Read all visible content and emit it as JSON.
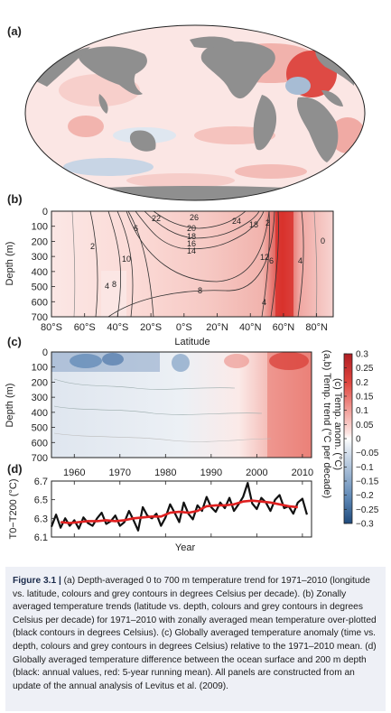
{
  "panels": {
    "a": {
      "label": "(a)"
    },
    "b": {
      "label": "(b)",
      "xlabel": "Latitude",
      "ylabel": "Depth (m)",
      "xticks": [
        "80°S",
        "60°S",
        "40°S",
        "20°S",
        "0°S",
        "20°N",
        "40°N",
        "60°N",
        "80°N"
      ],
      "yticks": [
        "0",
        "100",
        "200",
        "300",
        "400",
        "500",
        "600",
        "700"
      ],
      "contour_labels": [
        "26",
        "22",
        "20",
        "18",
        "16",
        "14",
        "24",
        "18",
        "12",
        "10",
        "8",
        "6",
        "6",
        "4",
        "4",
        "2",
        "2",
        "0",
        "8",
        "4"
      ]
    },
    "c": {
      "label": "(c)",
      "ylabel": "Depth (m)",
      "yticks": [
        "0",
        "100",
        "200",
        "300",
        "400",
        "500",
        "600",
        "700"
      ]
    },
    "d": {
      "label": "(d)",
      "xlabel": "Year",
      "ylabel": "T0−T200 (°C)",
      "yticks": [
        "6.1",
        "6.3",
        "6.5",
        "6.7"
      ],
      "xticks": [
        "1960",
        "1970",
        "1980",
        "1990",
        "2000",
        "2010"
      ]
    }
  },
  "colorbar": {
    "ticks": [
      "0.3",
      "0.25",
      "0.2",
      "0.15",
      "0.1",
      "0.05",
      "0",
      "−0.05",
      "−0.1",
      "−0.15",
      "−0.2",
      "−0.25",
      "−0.3"
    ],
    "label_trend": "(a,b) Temp. trend (°C per decade)",
    "label_anom": "(c) Temp. anom. (°C)",
    "colors": {
      "max": "#c0272d",
      "zero": "#ffffff",
      "min": "#2c5a8c"
    }
  },
  "caption": {
    "title": "Figure 3.1 |",
    "text": " (a) Depth-averaged 0 to 700 m temperature trend for 1971–2010 (longitude vs. latitude, colours and grey contours in degrees Celsius per decade). (b) Zonally averaged temperature trends (latitude vs. depth, colours and grey contours in degrees Celsius per decade) for 1971–2010 with zonally averaged mean temperature over-plotted (black contours in degrees Celsius). (c) Globally averaged temperature anomaly (time vs. depth, colours and grey contours in degrees Celsius) relative to the 1971–2010 mean. (d) Globally averaged temperature difference between the ocean surface and 200 m depth (black: annual values, red: 5-year running mean). All panels are constructed from an update of the annual analysis of Levitus et al. (2009)."
  },
  "chart_data": [
    {
      "panel": "a",
      "type": "heatmap",
      "description_x": "longitude",
      "description_y": "latitude",
      "value_units": "°C per decade",
      "clim": [
        -0.3,
        0.3
      ]
    },
    {
      "panel": "b",
      "type": "heatmap",
      "xlabel": "Latitude",
      "ylabel": "Depth (m)",
      "xlim": [
        -80,
        90
      ],
      "ylim": [
        700,
        0
      ],
      "clim": [
        -0.3,
        0.3
      ]
    },
    {
      "panel": "c",
      "type": "heatmap",
      "ylabel": "Depth (m)",
      "xlim": [
        1955,
        2012
      ],
      "ylim": [
        700,
        0
      ],
      "clim": [
        -0.3,
        0.3
      ]
    },
    {
      "panel": "d",
      "type": "line",
      "xlabel": "Year",
      "ylabel": "T0−T200 (°C)",
      "xlim": [
        1955,
        2012
      ],
      "ylim": [
        6.1,
        6.7
      ],
      "series": [
        {
          "color": "#111111",
          "x": [
            1955,
            1956,
            1957,
            1958,
            1959,
            1960,
            1961,
            1962,
            1963,
            1964,
            1965,
            1966,
            1967,
            1968,
            1969,
            1970,
            1971,
            1972,
            1973,
            1974,
            1975,
            1976,
            1977,
            1978,
            1979,
            1980,
            1981,
            1982,
            1983,
            1984,
            1985,
            1986,
            1987,
            1988,
            1989,
            1990,
            1991,
            1992,
            1993,
            1994,
            1995,
            1996,
            1997,
            1998,
            1999,
            2000,
            2001,
            2002,
            2003,
            2004,
            2005,
            2006,
            2007,
            2008,
            2009,
            2010,
            2011
          ],
          "values": [
            6.21,
            6.34,
            6.2,
            6.3,
            6.22,
            6.28,
            6.19,
            6.31,
            6.25,
            6.22,
            6.3,
            6.36,
            6.24,
            6.27,
            6.33,
            6.22,
            6.26,
            6.38,
            6.28,
            6.17,
            6.42,
            6.33,
            6.3,
            6.35,
            6.22,
            6.31,
            6.45,
            6.36,
            6.26,
            6.47,
            6.35,
            6.29,
            6.44,
            6.38,
            6.53,
            6.42,
            6.37,
            6.47,
            6.41,
            6.52,
            6.38,
            6.45,
            6.53,
            6.68,
            6.46,
            6.4,
            6.52,
            6.47,
            6.38,
            6.5,
            6.55,
            6.41,
            6.43,
            6.35,
            6.47,
            6.51,
            6.34
          ]
        },
        {
          "color": "#e02020",
          "x": [
            1957,
            1959,
            1961,
            1963,
            1965,
            1967,
            1969,
            1971,
            1973,
            1975,
            1977,
            1979,
            1981,
            1983,
            1985,
            1987,
            1989,
            1991,
            1993,
            1995,
            1997,
            1999,
            2001,
            2003,
            2005,
            2007,
            2009
          ],
          "values": [
            6.26,
            6.25,
            6.26,
            6.27,
            6.27,
            6.28,
            6.27,
            6.28,
            6.3,
            6.31,
            6.32,
            6.32,
            6.36,
            6.37,
            6.36,
            6.38,
            6.43,
            6.44,
            6.44,
            6.45,
            6.48,
            6.49,
            6.48,
            6.47,
            6.45,
            6.43,
            6.42
          ]
        }
      ]
    }
  ]
}
